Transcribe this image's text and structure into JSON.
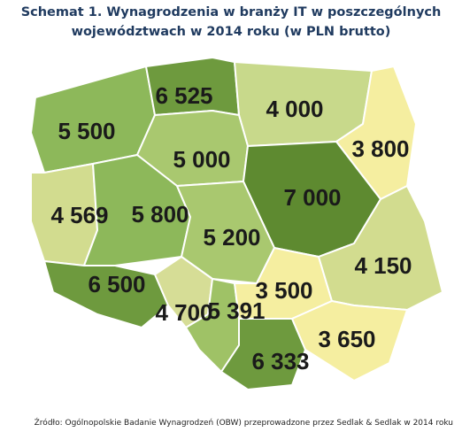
{
  "title_lines": [
    "Schemat 1. Wynagrodzenia w branży IT w poszczególnych",
    "województwach w 2014 roku (w PLN brutto)"
  ],
  "regions": [
    {
      "label": "6 525"
    },
    {
      "label": "4 000"
    },
    {
      "label": "5 500"
    },
    {
      "label": "3 800"
    },
    {
      "label": "5 000"
    },
    {
      "label": "7 000"
    },
    {
      "label": "4 569"
    },
    {
      "label": "5 800"
    },
    {
      "label": "5 200"
    },
    {
      "label": "4 150"
    },
    {
      "label": "6 500"
    },
    {
      "label": "3 500"
    },
    {
      "label": "4 700"
    },
    {
      "label": "5 391"
    },
    {
      "label": "3 650"
    },
    {
      "label": "6 333"
    }
  ],
  "source": "Źródło: Ogólnopolskie Badanie Wynagrodzeń (OBW) przeprowadzone przez Sedlak & Sedlak w 2014 roku"
}
